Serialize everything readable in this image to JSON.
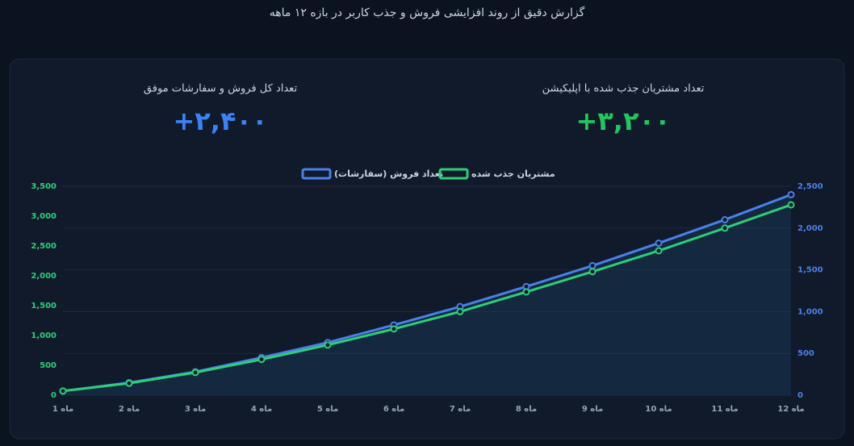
{
  "header": {
    "title": "گزارش دقیق از روند افزایشی فروش و جذب کاربر در بازه ۱۲ ماهه"
  },
  "stats": [
    {
      "label": "تعداد مشتریان جذب شده با اپلیکیشن",
      "value": "۳,۲۰۰+",
      "color": "#22c55e"
    },
    {
      "label": "تعداد کل فروش و سفارشات موفق",
      "value": "۲,۴۰۰+",
      "color": "#3b82f6"
    }
  ],
  "chart_data": {
    "type": "line",
    "categories": [
      "ماه 1",
      "ماه 2",
      "ماه 3",
      "ماه 4",
      "ماه 5",
      "ماه 6",
      "ماه 7",
      "ماه 8",
      "ماه 9",
      "ماه 10",
      "ماه 11",
      "ماه 12"
    ],
    "series": [
      {
        "name": "تعداد فروش (سفارشات)",
        "color": "#4a80ea",
        "axis": "y2",
        "values": [
          50,
          150,
          280,
          450,
          630,
          840,
          1060,
          1300,
          1550,
          1820,
          2100,
          2400
        ]
      },
      {
        "name": "مشتریان جذب شده",
        "color": "#2ccf78",
        "values": [
          70,
          200,
          380,
          600,
          840,
          1110,
          1400,
          1730,
          2070,
          2420,
          2800,
          3190
        ]
      }
    ],
    "ylim": [
      0,
      3500
    ],
    "yticks": [
      0,
      500,
      {
        "value": 1000,
        "label": "1,000"
      },
      {
        "value": 1500,
        "label": "1,500"
      },
      {
        "value": 2000,
        "label": "2,000"
      },
      {
        "value": 2500,
        "label": "2,500"
      },
      {
        "value": 3000,
        "label": "3,000"
      },
      {
        "value": 3500,
        "label": "3,500"
      }
    ],
    "y2lim": [
      0,
      2500
    ],
    "y2ticks": [
      0,
      500,
      {
        "value": 1000,
        "label": "1,000"
      },
      {
        "value": 1500,
        "label": "1,500"
      },
      {
        "value": 2000,
        "label": "2,000"
      },
      {
        "value": 2500,
        "label": "2,500"
      }
    ],
    "grid": true
  }
}
